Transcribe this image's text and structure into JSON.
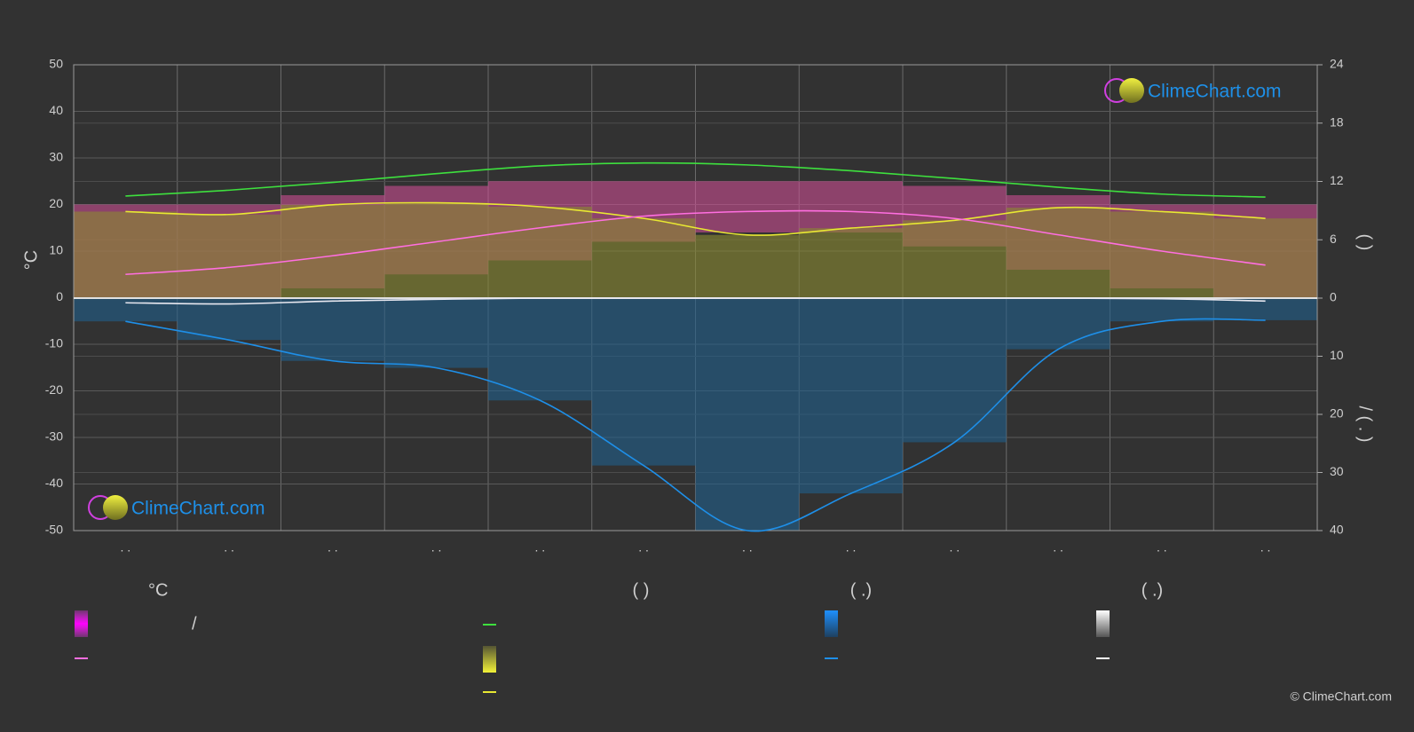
{
  "chart_data": {
    "type": "line",
    "categories": [
      ". .",
      ". .",
      ". .",
      ". .",
      ". .",
      ". .",
      ". .",
      ". .",
      ". .",
      ". .",
      ". .",
      ". ."
    ],
    "ylabel": "°C",
    "y2label": "(          )",
    "y3label": "/        (  .  )",
    "ylim": [
      -50,
      50
    ],
    "yticks": [
      -50,
      -40,
      -30,
      -20,
      -10,
      0,
      10,
      20,
      30,
      40,
      50
    ],
    "y2lim": [
      0,
      24
    ],
    "y2ticks": [
      0,
      6,
      12,
      18,
      24
    ],
    "y3lim": [
      0,
      40
    ],
    "y3ticks": [
      10,
      20,
      30,
      40
    ],
    "grid": true,
    "temperature_range": {
      "color": "#d9509a",
      "high": [
        20,
        20,
        22,
        24,
        25,
        25,
        25,
        25,
        24,
        22,
        20,
        20
      ],
      "low": [
        0,
        0,
        2,
        5,
        8,
        12,
        14,
        14,
        11,
        6,
        2,
        0
      ]
    },
    "series": [
      {
        "color": "#3ee03e",
        "axis": "y2",
        "values": [
          10.5,
          11.1,
          11.9,
          12.8,
          13.6,
          13.9,
          13.7,
          13.1,
          12.3,
          11.4,
          10.7,
          10.4
        ]
      },
      {
        "color": "#e8e832",
        "axis": "y2",
        "fill": "#8a8a30",
        "values": [
          8.9,
          8.6,
          9.6,
          9.8,
          9.4,
          8.2,
          6.5,
          7.2,
          8.0,
          9.3,
          8.9,
          8.2
        ]
      },
      {
        "color": "#ff6ee0",
        "axis": "y",
        "values": [
          5,
          6.5,
          9,
          12,
          15,
          17.5,
          18.5,
          18.5,
          17,
          13.5,
          10,
          7
        ]
      },
      {
        "color": "#1e8fe8",
        "axis": "y3",
        "fill": "#1f5f8c",
        "values": [
          4,
          7.2,
          10.8,
          12,
          17.6,
          28.8,
          40,
          33.6,
          24.8,
          8.8,
          4,
          3.8
        ]
      },
      {
        "color": "#e8e8f0",
        "axis": "y3",
        "values": [
          0.8,
          1.0,
          0.5,
          0.2,
          0,
          0,
          0,
          0,
          0,
          0,
          0.1,
          0.5
        ]
      }
    ],
    "legend": {
      "headers": [
        "°C",
        "(          )",
        "(   .)",
        "(   .)"
      ],
      "note": "/"
    },
    "watermark": "ClimeChart.com",
    "copyright": "© ClimeChart.com"
  }
}
